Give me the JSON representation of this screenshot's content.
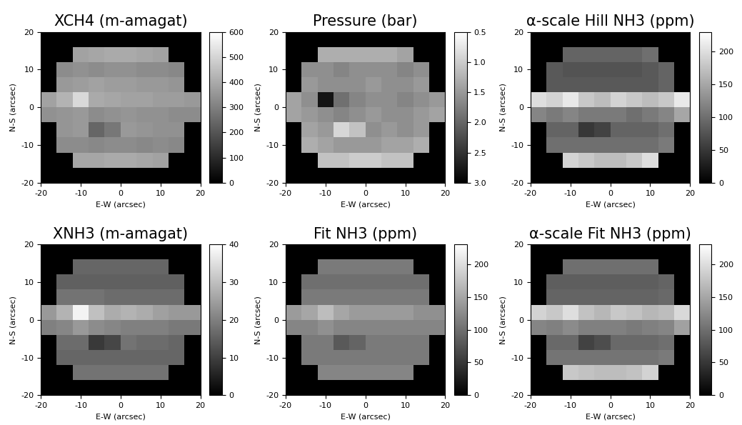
{
  "chart_data": [
    {
      "type": "heatmap",
      "title": "XCH4 (m-amagat)",
      "xlabel": "E-W (arcsec)",
      "ylabel": "N-S (arcsec)",
      "xlim": [
        -20,
        20
      ],
      "ylim": [
        -20,
        20
      ],
      "xticks": [
        -20,
        -10,
        0,
        10,
        20
      ],
      "yticks": [
        -20,
        -10,
        0,
        10,
        20
      ],
      "x": [
        -18,
        -14,
        -10,
        -6,
        -2,
        2,
        6,
        10,
        14,
        18
      ],
      "y": [
        18,
        14,
        10,
        6,
        2,
        -2,
        -6,
        -10,
        -14,
        -18
      ],
      "cells": [
        [
          null,
          null,
          null,
          null,
          null,
          null,
          null,
          null,
          null,
          null
        ],
        [
          null,
          null,
          380,
          390,
          400,
          400,
          390,
          380,
          null,
          null
        ],
        [
          null,
          330,
          340,
          330,
          340,
          340,
          330,
          330,
          320,
          null
        ],
        [
          null,
          360,
          370,
          380,
          370,
          370,
          360,
          360,
          350,
          null
        ],
        [
          380,
          420,
          510,
          400,
          390,
          380,
          380,
          370,
          370,
          360
        ],
        [
          340,
          350,
          360,
          330,
          340,
          350,
          340,
          340,
          330,
          330
        ],
        [
          null,
          350,
          360,
          240,
          280,
          360,
          350,
          340,
          340,
          null
        ],
        [
          null,
          330,
          330,
          320,
          330,
          330,
          320,
          330,
          320,
          null
        ],
        [
          null,
          null,
          390,
          390,
          400,
          400,
          390,
          380,
          null,
          null
        ],
        [
          null,
          null,
          null,
          null,
          null,
          null,
          null,
          null,
          null,
          null
        ]
      ],
      "colorbar_range": [
        0,
        600
      ],
      "colorbar_ticks": [
        0,
        100,
        200,
        300,
        400,
        500,
        600
      ]
    },
    {
      "type": "heatmap",
      "title": "Pressure (bar)",
      "xlabel": "E-W (arcsec)",
      "ylabel": "N-S (arcsec)",
      "xlim": [
        -20,
        20
      ],
      "ylim": [
        -20,
        20
      ],
      "xticks": [
        -20,
        -10,
        0,
        10,
        20
      ],
      "yticks": [
        -20,
        -10,
        0,
        10,
        20
      ],
      "x": [
        -18,
        -14,
        -10,
        -6,
        -2,
        2,
        6,
        10,
        14,
        18
      ],
      "y": [
        18,
        14,
        10,
        6,
        2,
        -2,
        -6,
        -10,
        -14,
        -18
      ],
      "cells": [
        [
          null,
          null,
          null,
          null,
          null,
          null,
          null,
          null,
          null,
          null
        ],
        [
          null,
          null,
          1.3,
          1.3,
          1.3,
          1.3,
          1.3,
          1.4,
          null,
          null
        ],
        [
          null,
          1.6,
          1.6,
          1.7,
          1.6,
          1.6,
          1.6,
          1.7,
          1.6,
          null
        ],
        [
          null,
          1.5,
          1.6,
          1.6,
          1.6,
          1.5,
          1.6,
          1.6,
          1.5,
          null
        ],
        [
          1.4,
          1.6,
          2.8,
          1.9,
          1.7,
          1.6,
          1.6,
          1.7,
          1.6,
          1.5
        ],
        [
          1.4,
          1.5,
          1.6,
          1.7,
          1.6,
          1.5,
          1.6,
          1.6,
          1.5,
          1.4
        ],
        [
          null,
          1.4,
          1.5,
          0.9,
          1.1,
          1.6,
          1.5,
          1.6,
          1.5,
          null
        ],
        [
          null,
          1.3,
          1.4,
          1.5,
          1.5,
          1.5,
          1.4,
          1.4,
          1.3,
          null
        ],
        [
          null,
          null,
          1.1,
          1.1,
          1.0,
          1.0,
          1.1,
          1.1,
          null,
          null
        ],
        [
          null,
          null,
          null,
          null,
          null,
          null,
          null,
          null,
          null,
          null
        ]
      ],
      "colorbar_range": [
        3.0,
        0.5
      ],
      "colorbar_ticks": [
        0.5,
        1.0,
        1.5,
        2.0,
        2.5,
        3.0
      ]
    },
    {
      "type": "heatmap",
      "title": "α-scale Hill NH3 (ppm)",
      "xlabel": "E-W (arcsec)",
      "ylabel": "N-S (arcsec)",
      "xlim": [
        -20,
        20
      ],
      "ylim": [
        -20,
        20
      ],
      "xticks": [
        -20,
        -10,
        0,
        10,
        20
      ],
      "yticks": [
        -20,
        -10,
        0,
        10,
        20
      ],
      "x": [
        -18,
        -14,
        -10,
        -6,
        -2,
        2,
        6,
        10,
        14,
        18
      ],
      "y": [
        18,
        14,
        10,
        6,
        2,
        -2,
        -6,
        -10,
        -14,
        -18
      ],
      "cells": [
        [
          null,
          null,
          null,
          null,
          null,
          null,
          null,
          null,
          null,
          null
        ],
        [
          null,
          null,
          90,
          90,
          90,
          90,
          90,
          100,
          null,
          null
        ],
        [
          null,
          80,
          75,
          75,
          75,
          75,
          75,
          80,
          90,
          null
        ],
        [
          null,
          80,
          80,
          80,
          80,
          80,
          80,
          80,
          90,
          null
        ],
        [
          200,
          190,
          210,
          180,
          170,
          190,
          180,
          170,
          180,
          210
        ],
        [
          120,
          110,
          120,
          110,
          110,
          110,
          100,
          110,
          120,
          150
        ],
        [
          null,
          90,
          90,
          50,
          60,
          90,
          90,
          90,
          100,
          null
        ],
        [
          null,
          100,
          100,
          100,
          100,
          100,
          100,
          100,
          110,
          null
        ],
        [
          null,
          null,
          190,
          180,
          170,
          170,
          180,
          200,
          null,
          null
        ],
        [
          null,
          null,
          null,
          null,
          null,
          null,
          null,
          null,
          null,
          null
        ]
      ],
      "colorbar_range": [
        0,
        230
      ],
      "colorbar_ticks": [
        0,
        50,
        100,
        150,
        200
      ]
    },
    {
      "type": "heatmap",
      "title": "XNH3 (m-amagat)",
      "xlabel": "E-W (arcsec)",
      "ylabel": "N-S (arcsec)",
      "xlim": [
        -20,
        20
      ],
      "ylim": [
        -20,
        20
      ],
      "xticks": [
        -20,
        -10,
        0,
        10,
        20
      ],
      "yticks": [
        -20,
        -10,
        0,
        10,
        20
      ],
      "x": [
        -18,
        -14,
        -10,
        -6,
        -2,
        2,
        6,
        10,
        14,
        18
      ],
      "y": [
        18,
        14,
        10,
        6,
        2,
        -2,
        -6,
        -10,
        -14,
        -18
      ],
      "cells": [
        [
          null,
          null,
          null,
          null,
          null,
          null,
          null,
          null,
          null,
          null
        ],
        [
          null,
          null,
          16,
          16,
          16,
          16,
          16,
          16,
          null,
          null
        ],
        [
          null,
          15,
          15,
          15,
          15,
          15,
          15,
          15,
          15,
          null
        ],
        [
          null,
          18,
          18,
          18,
          17,
          17,
          17,
          17,
          17,
          null
        ],
        [
          24,
          28,
          38,
          30,
          27,
          28,
          27,
          25,
          24,
          24
        ],
        [
          20,
          21,
          24,
          22,
          21,
          20,
          20,
          20,
          19,
          19
        ],
        [
          null,
          17,
          17,
          9,
          11,
          18,
          17,
          17,
          16,
          null
        ],
        [
          null,
          16,
          16,
          16,
          16,
          16,
          16,
          16,
          16,
          null
        ],
        [
          null,
          null,
          18,
          18,
          18,
          18,
          18,
          18,
          null,
          null
        ],
        [
          null,
          null,
          null,
          null,
          null,
          null,
          null,
          null,
          null,
          null
        ]
      ],
      "colorbar_range": [
        0,
        40
      ],
      "colorbar_ticks": [
        0,
        10,
        20,
        30,
        40
      ]
    },
    {
      "type": "heatmap",
      "title": "Fit NH3 (ppm)",
      "xlabel": "E-W (arcsec)",
      "ylabel": "N-S (arcsec)",
      "xlim": [
        -20,
        20
      ],
      "ylim": [
        -20,
        20
      ],
      "xticks": [
        -20,
        -10,
        0,
        10,
        20
      ],
      "yticks": [
        -20,
        -10,
        0,
        10,
        20
      ],
      "x": [
        -18,
        -14,
        -10,
        -6,
        -2,
        2,
        6,
        10,
        14,
        18
      ],
      "y": [
        18,
        14,
        10,
        6,
        2,
        -2,
        -6,
        -10,
        -14,
        -18
      ],
      "cells": [
        [
          null,
          null,
          null,
          null,
          null,
          null,
          null,
          null,
          null,
          null
        ],
        [
          null,
          null,
          110,
          110,
          110,
          110,
          110,
          110,
          null,
          null
        ],
        [
          null,
          100,
          100,
          100,
          100,
          100,
          100,
          100,
          100,
          null
        ],
        [
          null,
          110,
          110,
          110,
          110,
          110,
          110,
          110,
          110,
          null
        ],
        [
          140,
          150,
          170,
          150,
          140,
          140,
          140,
          140,
          130,
          130
        ],
        [
          120,
          120,
          130,
          120,
          120,
          120,
          120,
          120,
          120,
          120
        ],
        [
          null,
          110,
          110,
          80,
          90,
          110,
          110,
          110,
          110,
          null
        ],
        [
          null,
          110,
          110,
          110,
          110,
          110,
          110,
          110,
          110,
          null
        ],
        [
          null,
          null,
          120,
          120,
          120,
          120,
          120,
          120,
          null,
          null
        ],
        [
          null,
          null,
          null,
          null,
          null,
          null,
          null,
          null,
          null,
          null
        ]
      ],
      "colorbar_range": [
        0,
        230
      ],
      "colorbar_ticks": [
        0,
        50,
        100,
        150,
        200
      ]
    },
    {
      "type": "heatmap",
      "title": "α-scale Fit NH3 (ppm)",
      "xlabel": "E-W (arcsec)",
      "ylabel": "N-S (arcsec)",
      "xlim": [
        -20,
        20
      ],
      "ylim": [
        -20,
        20
      ],
      "xticks": [
        -20,
        -10,
        0,
        10,
        20
      ],
      "yticks": [
        -20,
        -10,
        0,
        10,
        20
      ],
      "x": [
        -18,
        -14,
        -10,
        -6,
        -2,
        2,
        6,
        10,
        14,
        18
      ],
      "y": [
        18,
        14,
        10,
        6,
        2,
        -2,
        -6,
        -10,
        -14,
        -18
      ],
      "cells": [
        [
          null,
          null,
          null,
          null,
          null,
          null,
          null,
          null,
          null,
          null
        ],
        [
          null,
          null,
          100,
          100,
          100,
          100,
          100,
          100,
          null,
          null
        ],
        [
          null,
          85,
          85,
          85,
          85,
          85,
          85,
          85,
          90,
          null
        ],
        [
          null,
          90,
          90,
          90,
          90,
          90,
          90,
          90,
          95,
          null
        ],
        [
          190,
          180,
          200,
          175,
          165,
          180,
          175,
          165,
          170,
          195
        ],
        [
          120,
          115,
          125,
          115,
          115,
          115,
          110,
          115,
          120,
          145
        ],
        [
          null,
          95,
          95,
          60,
          70,
          95,
          95,
          95,
          100,
          null
        ],
        [
          null,
          105,
          105,
          105,
          105,
          105,
          105,
          105,
          110,
          null
        ],
        [
          null,
          null,
          180,
          175,
          170,
          170,
          175,
          190,
          null,
          null
        ],
        [
          null,
          null,
          null,
          null,
          null,
          null,
          null,
          null,
          null,
          null
        ]
      ],
      "colorbar_range": [
        0,
        230
      ],
      "colorbar_ticks": [
        0,
        50,
        100,
        150,
        200
      ]
    }
  ]
}
